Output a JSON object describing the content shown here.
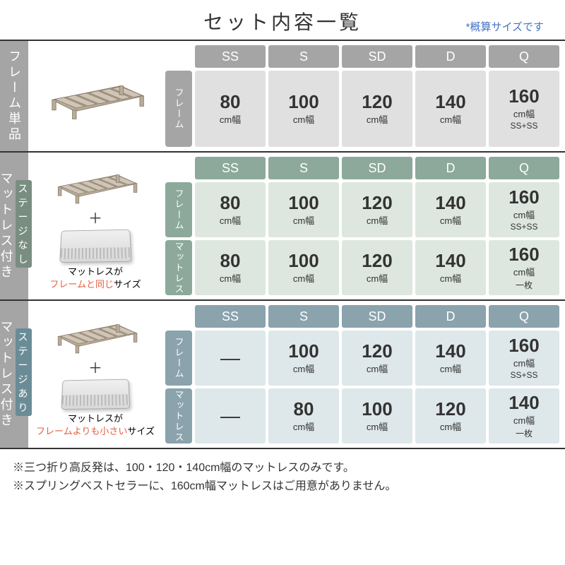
{
  "header": {
    "title": "セット内容一覧",
    "note": "*概算サイズです"
  },
  "sizes": [
    "SS",
    "S",
    "SD",
    "D",
    "Q"
  ],
  "colors": {
    "gray_header": "#a5a5a5",
    "gray_cell": "#e0e0e0",
    "green_header": "#8ca99b",
    "green_cell": "#dde7df",
    "blue_header": "#8aa3ad",
    "blue_cell": "#dee7e9",
    "accent_red": "#e85d3d",
    "note_blue": "#4472c4"
  },
  "sections": [
    {
      "key": "frame_only",
      "tab_label": "フレーム単品",
      "tab_badge": null,
      "theme": "gray",
      "caption": null,
      "rows": [
        {
          "label": "フレーム",
          "cells": [
            {
              "num": "80",
              "unit": "cm幅",
              "sub": null
            },
            {
              "num": "100",
              "unit": "cm幅",
              "sub": null
            },
            {
              "num": "120",
              "unit": "cm幅",
              "sub": null
            },
            {
              "num": "140",
              "unit": "cm幅",
              "sub": null
            },
            {
              "num": "160",
              "unit": "cm幅",
              "sub": "SS+SS"
            }
          ]
        }
      ]
    },
    {
      "key": "stage_none",
      "tab_label": "マットレス付き",
      "tab_badge": "ステージなし",
      "theme": "green",
      "caption_plain1": "マットレスが",
      "caption_red": "フレームと同じ",
      "caption_plain2": "サイズ",
      "rows": [
        {
          "label": "フレーム",
          "cells": [
            {
              "num": "80",
              "unit": "cm幅",
              "sub": null
            },
            {
              "num": "100",
              "unit": "cm幅",
              "sub": null
            },
            {
              "num": "120",
              "unit": "cm幅",
              "sub": null
            },
            {
              "num": "140",
              "unit": "cm幅",
              "sub": null
            },
            {
              "num": "160",
              "unit": "cm幅",
              "sub": "SS+SS"
            }
          ]
        },
        {
          "label": "マットレス",
          "cells": [
            {
              "num": "80",
              "unit": "cm幅",
              "sub": null
            },
            {
              "num": "100",
              "unit": "cm幅",
              "sub": null
            },
            {
              "num": "120",
              "unit": "cm幅",
              "sub": null
            },
            {
              "num": "140",
              "unit": "cm幅",
              "sub": null
            },
            {
              "num": "160",
              "unit": "cm幅",
              "sub": "一枚"
            }
          ]
        }
      ]
    },
    {
      "key": "stage_yes",
      "tab_label": "マットレス付き",
      "tab_badge": "ステージあり",
      "theme": "blue",
      "caption_plain1": "マットレスが",
      "caption_red": "フレームよりも小さい",
      "caption_plain2": "サイズ",
      "rows": [
        {
          "label": "フレーム",
          "cells": [
            {
              "dash": true
            },
            {
              "num": "100",
              "unit": "cm幅",
              "sub": null
            },
            {
              "num": "120",
              "unit": "cm幅",
              "sub": null
            },
            {
              "num": "140",
              "unit": "cm幅",
              "sub": null
            },
            {
              "num": "160",
              "unit": "cm幅",
              "sub": "SS+SS"
            }
          ]
        },
        {
          "label": "マットレス",
          "cells": [
            {
              "dash": true
            },
            {
              "num": "80",
              "unit": "cm幅",
              "sub": null
            },
            {
              "num": "100",
              "unit": "cm幅",
              "sub": null
            },
            {
              "num": "120",
              "unit": "cm幅",
              "sub": null
            },
            {
              "num": "140",
              "unit": "cm幅",
              "sub": "一枚"
            }
          ]
        }
      ]
    }
  ],
  "footer": {
    "line1": "※三つ折り高反発は、100・120・140cm幅のマットレスのみです。",
    "line2": "※スプリングベストセラーに、160cm幅マットレスはご用意がありません。"
  }
}
